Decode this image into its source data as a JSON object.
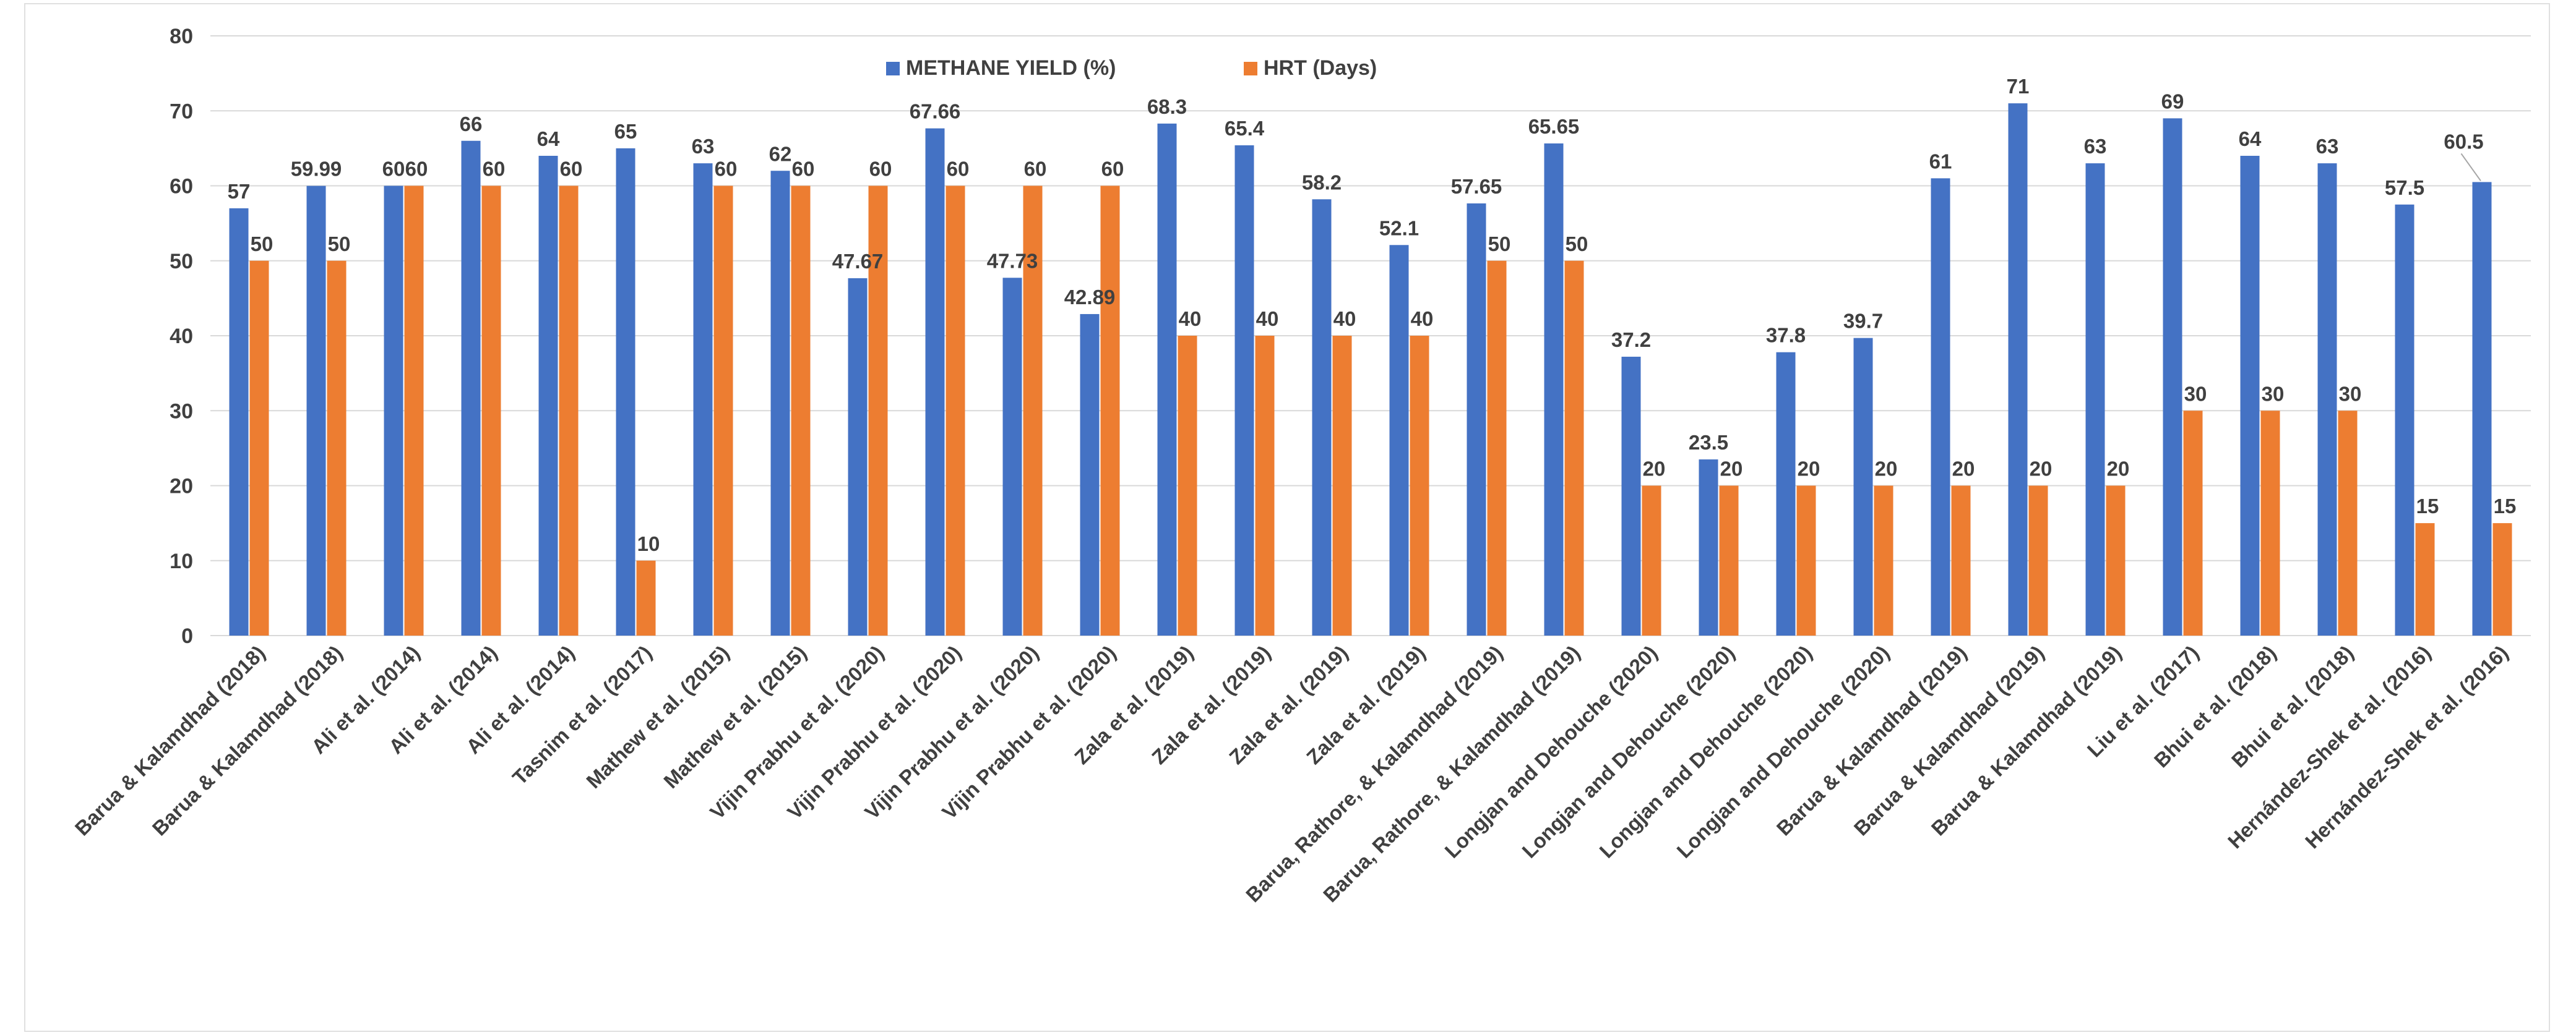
{
  "chart_data": {
    "type": "bar",
    "title": "",
    "xlabel": "",
    "ylabel": "",
    "ylim": [
      0,
      80
    ],
    "yticks": [
      0,
      10,
      20,
      30,
      40,
      50,
      60,
      70,
      80
    ],
    "grid": true,
    "legend_position": "top-center",
    "categories": [
      "Barua & Kalamdhad (2018)",
      "Barua & Kalamdhad (2018)",
      "Ali et al. (2014)",
      "Ali et al. (2014)",
      "Ali et al. (2014)",
      "Tasnim et al. (2017)",
      "Mathew et al. (2015)",
      "Mathew et al. (2015)",
      "Vijin Prabhu et al. (2020)",
      "Vijin Prabhu et al. (2020)",
      "Vijin Prabhu et al. (2020)",
      "Vijin Prabhu et al. (2020)",
      "Zala et al. (2019)",
      "Zala et al. (2019)",
      "Zala et al. (2019)",
      "Zala et al. (2019)",
      "Barua, Rathore, & Kalamdhad (2019)",
      "Barua, Rathore, & Kalamdhad (2019)",
      "Longjan and Dehouche (2020)",
      "Longjan and Dehouche (2020)",
      "Longjan and Dehouche (2020)",
      "Longjan and Dehouche (2020)",
      "Barua & Kalamdhad (2019)",
      "Barua & Kalamdhad (2019)",
      "Barua & Kalamdhad (2019)",
      "Liu et al. (2017)",
      "Bhui et al. (2018)",
      "Bhui et al. (2018)",
      "Hernández-Shek et al. (2016)",
      "Hernández-Shek et al. (2016)"
    ],
    "series": [
      {
        "name": "METHANE YIELD (%)",
        "color": "#4472C4",
        "values": [
          57,
          59.99,
          60,
          66,
          64,
          65,
          63,
          62,
          47.67,
          67.66,
          47.73,
          42.89,
          68.3,
          65.4,
          58.2,
          52.1,
          57.65,
          65.65,
          37.2,
          23.5,
          37.8,
          39.7,
          61,
          71,
          63,
          69,
          64,
          63,
          57.5,
          60.5
        ]
      },
      {
        "name": "HRT (Days)",
        "color": "#ED7D31",
        "values": [
          50,
          50,
          60,
          60,
          60,
          10,
          60,
          60,
          60,
          60,
          60,
          60,
          40,
          40,
          40,
          40,
          50,
          50,
          20,
          20,
          20,
          20,
          20,
          20,
          20,
          30,
          30,
          30,
          15,
          15
        ]
      }
    ]
  },
  "colors": {
    "grid": "#d9d9d9",
    "text": "#404040",
    "frame": "#e0e0e0"
  }
}
